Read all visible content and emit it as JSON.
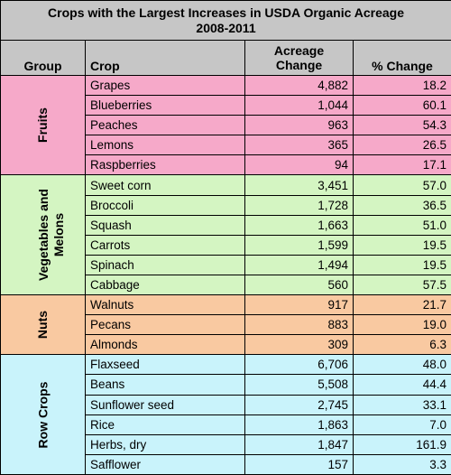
{
  "title": {
    "line1": "Crops with the Largest Increases in USDA Organic Acreage",
    "line2": "2008-2011"
  },
  "headers": {
    "group": "Group",
    "crop": "Crop",
    "acreage_line1": "Acreage",
    "acreage_line2": "Change",
    "pct_change": "% Change"
  },
  "groups": [
    {
      "label_lines": [
        "Fruits"
      ],
      "color": "#f6a9c9",
      "rows": [
        {
          "crop": "Grapes",
          "acreage": "4,882",
          "pct": "18.2"
        },
        {
          "crop": "Blueberries",
          "acreage": "1,044",
          "pct": "60.1"
        },
        {
          "crop": "Peaches",
          "acreage": "963",
          "pct": "54.3"
        },
        {
          "crop": "Lemons",
          "acreage": "365",
          "pct": "26.5"
        },
        {
          "crop": "Raspberries",
          "acreage": "94",
          "pct": "17.1"
        }
      ]
    },
    {
      "label_lines": [
        "Vegetables and",
        "Melons"
      ],
      "color": "#d4f5c2",
      "rows": [
        {
          "crop": "Sweet corn",
          "acreage": "3,451",
          "pct": "57.0"
        },
        {
          "crop": "Broccoli",
          "acreage": "1,728",
          "pct": "36.5"
        },
        {
          "crop": "Squash",
          "acreage": "1,663",
          "pct": "51.0"
        },
        {
          "crop": "Carrots",
          "acreage": "1,599",
          "pct": "19.5"
        },
        {
          "crop": "Spinach",
          "acreage": "1,494",
          "pct": "19.5"
        },
        {
          "crop": "Cabbage",
          "acreage": "560",
          "pct": "57.5"
        }
      ]
    },
    {
      "label_lines": [
        "Nuts"
      ],
      "color": "#f9c9a1",
      "rows": [
        {
          "crop": "Walnuts",
          "acreage": "917",
          "pct": "21.7"
        },
        {
          "crop": "Pecans",
          "acreage": "883",
          "pct": "19.0"
        },
        {
          "crop": "Almonds",
          "acreage": "309",
          "pct": "6.3"
        }
      ]
    },
    {
      "label_lines": [
        "Row Crops"
      ],
      "color": "#c9f3fb",
      "rows": [
        {
          "crop": "Flaxseed",
          "acreage": "6,706",
          "pct": "48.0"
        },
        {
          "crop": "Beans",
          "acreage": "5,508",
          "pct": "44.4"
        },
        {
          "crop": "Sunflower seed",
          "acreage": "2,745",
          "pct": "33.1"
        },
        {
          "crop": "Rice",
          "acreage": "1,863",
          "pct": "7.0"
        },
        {
          "crop": "Herbs, dry",
          "acreage": "1,847",
          "pct": "161.9"
        },
        {
          "crop": "Safflower",
          "acreage": "157",
          "pct": "3.3"
        }
      ]
    }
  ],
  "chart_data": {
    "type": "table",
    "title": "Crops with the Largest Increases in USDA Organic Acreage 2008-2011",
    "columns": [
      "Group",
      "Crop",
      "Acreage Change",
      "% Change"
    ],
    "rows": [
      [
        "Fruits",
        "Grapes",
        4882,
        18.2
      ],
      [
        "Fruits",
        "Blueberries",
        1044,
        60.1
      ],
      [
        "Fruits",
        "Peaches",
        963,
        54.3
      ],
      [
        "Fruits",
        "Lemons",
        365,
        26.5
      ],
      [
        "Fruits",
        "Raspberries",
        94,
        17.1
      ],
      [
        "Vegetables and Melons",
        "Sweet corn",
        3451,
        57.0
      ],
      [
        "Vegetables and Melons",
        "Broccoli",
        1728,
        36.5
      ],
      [
        "Vegetables and Melons",
        "Squash",
        1663,
        51.0
      ],
      [
        "Vegetables and Melons",
        "Carrots",
        1599,
        19.5
      ],
      [
        "Vegetables and Melons",
        "Spinach",
        1494,
        19.5
      ],
      [
        "Vegetables and Melons",
        "Cabbage",
        560,
        57.5
      ],
      [
        "Nuts",
        "Walnuts",
        917,
        21.7
      ],
      [
        "Nuts",
        "Pecans",
        883,
        19.0
      ],
      [
        "Nuts",
        "Almonds",
        309,
        6.3
      ],
      [
        "Row Crops",
        "Flaxseed",
        6706,
        48.0
      ],
      [
        "Row Crops",
        "Beans",
        5508,
        44.4
      ],
      [
        "Row Crops",
        "Sunflower seed",
        2745,
        33.1
      ],
      [
        "Row Crops",
        "Rice",
        1863,
        7.0
      ],
      [
        "Row Crops",
        "Herbs, dry",
        1847,
        161.9
      ],
      [
        "Row Crops",
        "Safflower",
        157,
        3.3
      ]
    ]
  }
}
